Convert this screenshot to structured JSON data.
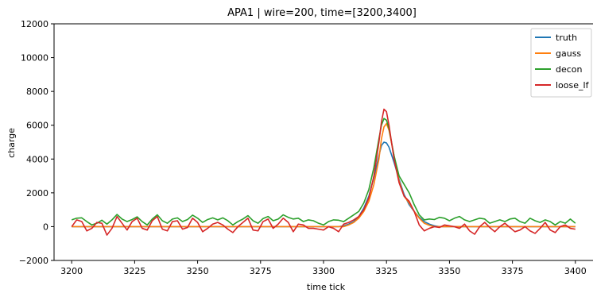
{
  "chart_data": {
    "type": "line",
    "title": "APA1 | wire=200, time=[3200,3400]",
    "xlabel": "time tick",
    "ylabel": "charge",
    "xlim": [
      3193,
      3407
    ],
    "ylim": [
      -2000,
      12000
    ],
    "xticks": [
      3200,
      3225,
      3250,
      3275,
      3300,
      3325,
      3350,
      3375,
      3400
    ],
    "yticks": [
      -2000,
      0,
      2000,
      4000,
      6000,
      8000,
      10000,
      12000
    ],
    "xtick_labels": [
      "3200",
      "3225",
      "3250",
      "3275",
      "3300",
      "3325",
      "3350",
      "3375",
      "3400"
    ],
    "ytick_labels": [
      "−2000",
      "0",
      "2000",
      "4000",
      "6000",
      "8000",
      "10000",
      "12000"
    ],
    "grid": false,
    "legend_position": "top-right",
    "x": [
      3200,
      3202,
      3204,
      3206,
      3208,
      3210,
      3212,
      3214,
      3216,
      3218,
      3220,
      3222,
      3224,
      3226,
      3228,
      3230,
      3232,
      3234,
      3236,
      3238,
      3240,
      3242,
      3244,
      3246,
      3248,
      3250,
      3252,
      3254,
      3256,
      3258,
      3260,
      3262,
      3264,
      3266,
      3268,
      3270,
      3272,
      3274,
      3276,
      3278,
      3280,
      3282,
      3284,
      3286,
      3288,
      3290,
      3292,
      3294,
      3296,
      3298,
      3300,
      3302,
      3304,
      3306,
      3308,
      3310,
      3312,
      3314,
      3316,
      3318,
      3320,
      3322,
      3323,
      3324,
      3325,
      3326,
      3328,
      3330,
      3332,
      3334,
      3336,
      3338,
      3340,
      3342,
      3344,
      3346,
      3348,
      3350,
      3352,
      3354,
      3356,
      3358,
      3360,
      3362,
      3364,
      3366,
      3368,
      3370,
      3372,
      3374,
      3376,
      3378,
      3380,
      3382,
      3384,
      3386,
      3388,
      3390,
      3392,
      3394,
      3396,
      3398,
      3400
    ],
    "series": [
      {
        "name": "truth",
        "color": "#1f77b4",
        "values": [
          0,
          0,
          0,
          0,
          0,
          0,
          0,
          0,
          0,
          0,
          0,
          0,
          0,
          0,
          0,
          0,
          0,
          0,
          0,
          0,
          0,
          0,
          0,
          0,
          0,
          0,
          0,
          0,
          0,
          0,
          0,
          0,
          0,
          0,
          0,
          0,
          0,
          0,
          0,
          0,
          0,
          0,
          0,
          0,
          0,
          0,
          0,
          0,
          0,
          0,
          0,
          0,
          0,
          0,
          50,
          150,
          300,
          600,
          1100,
          1800,
          2900,
          4200,
          4800,
          5000,
          4950,
          4700,
          3800,
          2800,
          1900,
          1300,
          900,
          550,
          300,
          150,
          50,
          0,
          0,
          0,
          0,
          0,
          0,
          0,
          0,
          0,
          0,
          0,
          0,
          0,
          0,
          0,
          0,
          0,
          0,
          0,
          0,
          0,
          0,
          0,
          0,
          0,
          0,
          0,
          0
        ]
      },
      {
        "name": "gauss",
        "color": "#ff7f0e",
        "values": [
          0,
          0,
          0,
          0,
          0,
          0,
          0,
          0,
          0,
          0,
          0,
          0,
          0,
          0,
          0,
          0,
          0,
          0,
          0,
          0,
          0,
          0,
          0,
          0,
          0,
          0,
          0,
          0,
          0,
          0,
          0,
          0,
          0,
          0,
          0,
          0,
          0,
          0,
          0,
          0,
          0,
          0,
          0,
          0,
          0,
          0,
          0,
          0,
          0,
          0,
          0,
          0,
          0,
          0,
          0,
          100,
          250,
          500,
          900,
          1500,
          2500,
          4000,
          5200,
          5900,
          6100,
          5700,
          4200,
          2700,
          1800,
          1400,
          900,
          500,
          200,
          80,
          0,
          0,
          0,
          0,
          0,
          0,
          0,
          0,
          0,
          0,
          0,
          0,
          0,
          0,
          0,
          0,
          0,
          0,
          0,
          0,
          0,
          0,
          0,
          0,
          0,
          0,
          0,
          0,
          0
        ]
      },
      {
        "name": "decon",
        "color": "#2ca02c",
        "values": [
          400,
          500,
          520,
          300,
          100,
          200,
          380,
          150,
          400,
          720,
          450,
          300,
          420,
          580,
          300,
          100,
          450,
          700,
          350,
          200,
          450,
          520,
          300,
          420,
          680,
          500,
          250,
          420,
          520,
          400,
          520,
          350,
          100,
          300,
          450,
          650,
          350,
          200,
          480,
          600,
          350,
          450,
          700,
          550,
          450,
          500,
          300,
          400,
          350,
          200,
          100,
          300,
          400,
          380,
          300,
          500,
          700,
          900,
          1400,
          2200,
          3500,
          5200,
          6000,
          6400,
          6300,
          5800,
          4200,
          3000,
          2500,
          2000,
          1300,
          700,
          400,
          450,
          420,
          550,
          500,
          350,
          500,
          600,
          400,
          300,
          400,
          500,
          450,
          200,
          300,
          400,
          300,
          450,
          500,
          300,
          200,
          500,
          350,
          250,
          400,
          300,
          100,
          300,
          200,
          450,
          200
        ]
      },
      {
        "name": "loose_lf",
        "color": "#d62728",
        "values": [
          0,
          400,
          300,
          -250,
          -100,
          250,
          200,
          -500,
          -100,
          600,
          200,
          -200,
          300,
          500,
          -100,
          -200,
          350,
          600,
          -150,
          -250,
          300,
          350,
          -150,
          -50,
          500,
          250,
          -300,
          -100,
          150,
          250,
          100,
          -150,
          -350,
          0,
          250,
          500,
          -200,
          -250,
          300,
          450,
          -100,
          150,
          500,
          250,
          -300,
          150,
          100,
          -100,
          -100,
          -150,
          -200,
          0,
          -100,
          -300,
          150,
          250,
          400,
          600,
          1000,
          1700,
          3000,
          5000,
          6200,
          6950,
          6800,
          6000,
          4000,
          2600,
          1800,
          1500,
          900,
          100,
          -250,
          -100,
          0,
          -50,
          100,
          50,
          0,
          -100,
          150,
          -250,
          -450,
          0,
          250,
          -50,
          -300,
          0,
          200,
          -50,
          -300,
          -200,
          0,
          -250,
          -400,
          -100,
          250,
          -200,
          -350,
          0,
          100,
          -100,
          -150
        ]
      }
    ]
  }
}
